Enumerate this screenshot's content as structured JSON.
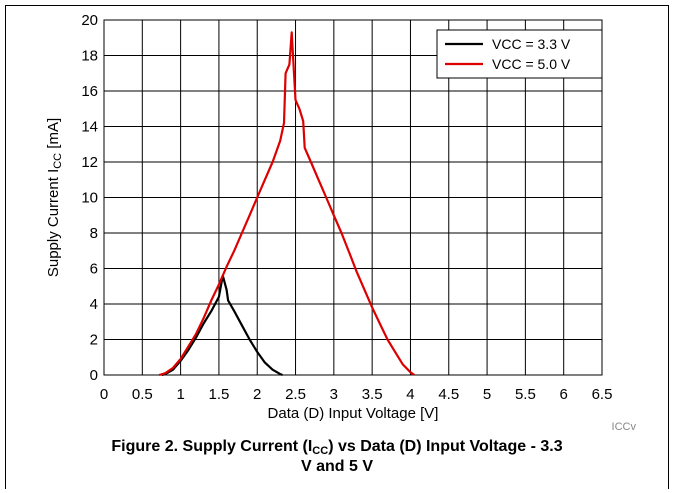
{
  "caption": {
    "prefix": "Figure 2. Supply Current (I",
    "sub": "CC",
    "line1_suffix": ") vs Data (D) Input Voltage - 3.3",
    "line2": "V and 5 V"
  },
  "image_tag": "ICCv",
  "chart_data": {
    "type": "line",
    "xlabel": "Data (D) Input Voltage [V]",
    "ylabel_prefix": "Supply Current I",
    "ylabel_sub": "CC",
    "ylabel_suffix": " [mA]",
    "xlim": [
      0,
      6.5
    ],
    "ylim": [
      0,
      20
    ],
    "x_ticks": [
      0,
      0.5,
      1,
      1.5,
      2,
      2.5,
      3,
      3.5,
      4,
      4.5,
      5,
      5.5,
      6,
      6.5
    ],
    "x_tick_labels": [
      "0",
      "0.5",
      "1",
      "1.5",
      "2",
      "2.5",
      "3",
      "3.5",
      "4",
      "4.5",
      "5",
      "5.5",
      "6",
      "6.5"
    ],
    "y_ticks": [
      0,
      2,
      4,
      6,
      8,
      10,
      12,
      14,
      16,
      18,
      20
    ],
    "y_tick_labels": [
      "0",
      "2",
      "4",
      "6",
      "8",
      "10",
      "12",
      "14",
      "16",
      "18",
      "20"
    ],
    "grid": true,
    "legend_position": "top-right",
    "series": [
      {
        "name": "VCC = 3.3 V",
        "color": "#000000",
        "points": [
          [
            0.75,
            0
          ],
          [
            0.8,
            0.05
          ],
          [
            0.9,
            0.3
          ],
          [
            1.0,
            0.8
          ],
          [
            1.1,
            1.4
          ],
          [
            1.2,
            2.1
          ],
          [
            1.3,
            2.9
          ],
          [
            1.4,
            3.6
          ],
          [
            1.5,
            4.4
          ],
          [
            1.55,
            5.6
          ],
          [
            1.6,
            4.8
          ],
          [
            1.62,
            4.2
          ],
          [
            1.7,
            3.6
          ],
          [
            1.8,
            2.8
          ],
          [
            1.9,
            2.0
          ],
          [
            2.0,
            1.3
          ],
          [
            2.1,
            0.7
          ],
          [
            2.2,
            0.3
          ],
          [
            2.3,
            0.05
          ],
          [
            2.33,
            0
          ]
        ]
      },
      {
        "name": "VCC = 5.0 V",
        "color": "#dd0000",
        "points": [
          [
            0.72,
            0
          ],
          [
            0.8,
            0.1
          ],
          [
            0.9,
            0.4
          ],
          [
            1.0,
            0.9
          ],
          [
            1.1,
            1.6
          ],
          [
            1.2,
            2.3
          ],
          [
            1.3,
            3.2
          ],
          [
            1.4,
            4.2
          ],
          [
            1.5,
            5.1
          ],
          [
            1.6,
            6.1
          ],
          [
            1.7,
            7.0
          ],
          [
            1.8,
            8.0
          ],
          [
            1.9,
            9.0
          ],
          [
            2.0,
            10.0
          ],
          [
            2.1,
            11.0
          ],
          [
            2.2,
            12.0
          ],
          [
            2.3,
            13.2
          ],
          [
            2.35,
            14.2
          ],
          [
            2.37,
            17.0
          ],
          [
            2.42,
            17.5
          ],
          [
            2.45,
            19.3
          ],
          [
            2.47,
            17.8
          ],
          [
            2.5,
            15.5
          ],
          [
            2.55,
            15.0
          ],
          [
            2.6,
            14.3
          ],
          [
            2.62,
            12.8
          ],
          [
            2.7,
            12.0
          ],
          [
            2.8,
            11.0
          ],
          [
            2.9,
            10.0
          ],
          [
            3.0,
            9.0
          ],
          [
            3.1,
            8.0
          ],
          [
            3.2,
            6.9
          ],
          [
            3.3,
            5.8
          ],
          [
            3.4,
            4.8
          ],
          [
            3.5,
            3.8
          ],
          [
            3.6,
            2.9
          ],
          [
            3.7,
            2.0
          ],
          [
            3.8,
            1.3
          ],
          [
            3.9,
            0.6
          ],
          [
            4.0,
            0.15
          ],
          [
            4.05,
            0
          ]
        ]
      }
    ]
  }
}
